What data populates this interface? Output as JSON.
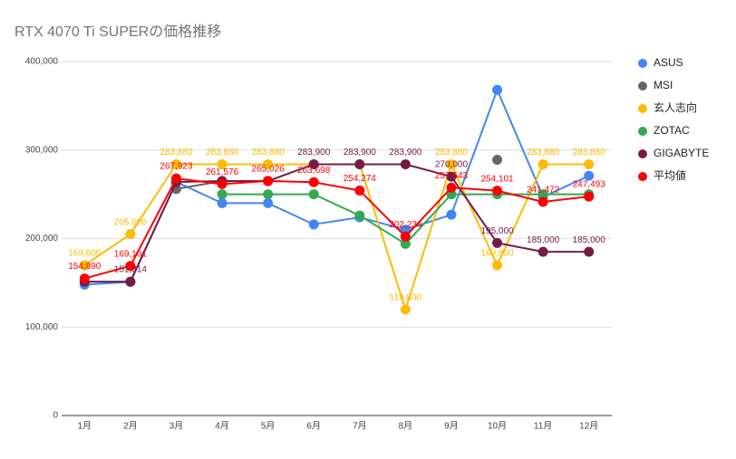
{
  "chart_data": {
    "type": "line",
    "title": "RTX 4070 Ti SUPERの価格推移",
    "categories": [
      "1月",
      "2月",
      "3月",
      "4月",
      "5月",
      "6月",
      "7月",
      "8月",
      "9月",
      "10月",
      "11月",
      "12月"
    ],
    "ylim": [
      0,
      400000
    ],
    "yticks": [
      0,
      {
        "value": 100000,
        "label": "100,000"
      },
      {
        "value": 200000,
        "label": "200,000"
      },
      {
        "value": 300000,
        "label": "300,000"
      },
      {
        "value": 400000,
        "label": "400,000"
      }
    ],
    "grid": true,
    "legend": "right",
    "series": [
      {
        "name": "ASUS",
        "color": "#4285f4",
        "values": [
          148000,
          151000,
          264000,
          240000,
          240000,
          216000,
          224000,
          210000,
          227000,
          368000,
          247000,
          271000
        ],
        "value_labels": [
          null,
          null,
          null,
          null,
          null,
          null,
          null,
          null,
          null,
          null,
          null,
          null
        ]
      },
      {
        "name": "MSI",
        "color": "#666666",
        "values": [
          null,
          null,
          256000,
          265000,
          265000,
          null,
          null,
          null,
          null,
          289000,
          null,
          null
        ],
        "value_labels": [
          null,
          null,
          null,
          null,
          null,
          null,
          null,
          null,
          null,
          null,
          null,
          null
        ]
      },
      {
        "name": "玄人志向",
        "color": "#fbbc04",
        "values": [
          169800,
          205000,
          283880,
          283880,
          283880,
          283880,
          283880,
          119800,
          283880,
          169800,
          283880,
          283880
        ],
        "value_labels": [
          "169,800",
          "205,000",
          "283,880",
          "283,880",
          "283,880",
          null,
          null,
          "119,800",
          "283,880",
          "169,800",
          "283,880",
          "283,880"
        ]
      },
      {
        "name": "ZOTAC",
        "color": "#34a853",
        "values": [
          null,
          null,
          null,
          250000,
          250000,
          250000,
          226000,
          194000,
          250000,
          250000,
          250000,
          250000
        ],
        "value_labels": [
          null,
          null,
          null,
          null,
          null,
          null,
          null,
          null,
          null,
          null,
          null,
          null
        ]
      },
      {
        "name": "GIGABYTE",
        "color": "#741b47",
        "values": [
          151314,
          151314,
          263900,
          265000,
          265000,
          283900,
          283900,
          283900,
          270000,
          195000,
          185000,
          185000
        ],
        "value_labels": [
          null,
          "151,314",
          null,
          null,
          null,
          "283,900",
          "283,900",
          "283,900",
          "270,000",
          "195,000",
          "185,000",
          "185,000"
        ]
      },
      {
        "name": "平均値",
        "color": "#ff0000",
        "values": [
          154890,
          169101,
          267923,
          261576,
          265026,
          263698,
          254274,
          202234,
          257543,
          254101,
          241472,
          247493
        ],
        "value_labels": [
          "154,890",
          "169,101",
          "267,923",
          "261,576",
          "265,026",
          "263,698",
          "254,274",
          "202,234",
          "257,543",
          "254,101",
          "241,472",
          "247,493"
        ]
      }
    ]
  }
}
